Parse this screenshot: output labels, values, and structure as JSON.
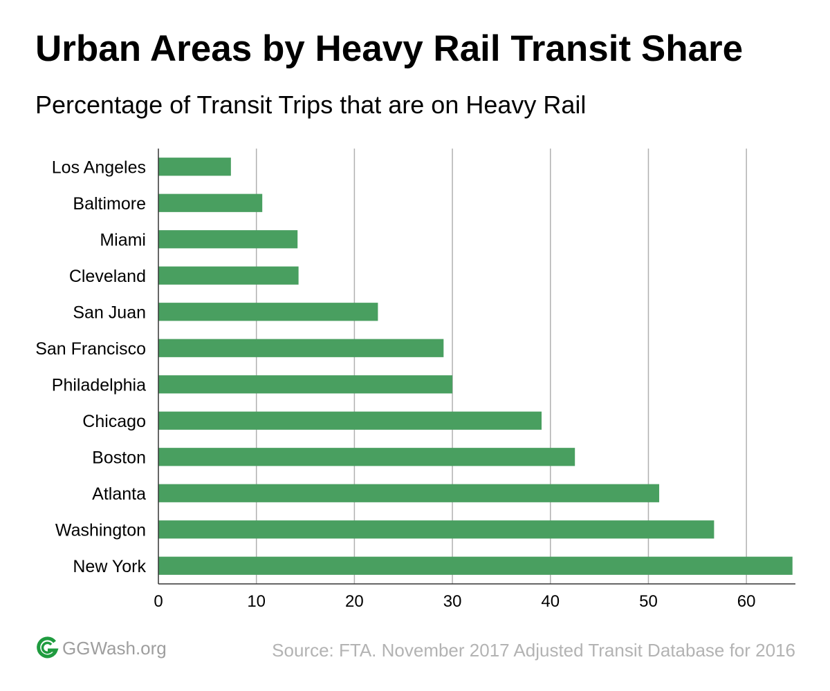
{
  "colors": {
    "bar": "#499f60",
    "grid": "#b0b0b0",
    "axis": "#333333",
    "logo": "#1f9b3f"
  },
  "footer": {
    "brand": "GGWash.org",
    "source": "Source: FTA. November 2017 Adjusted Transit Database for 2016",
    "logo_icon": "ggwash-logo-icon"
  },
  "chart_data": {
    "type": "bar",
    "orientation": "horizontal",
    "title": "Urban Areas by Heavy Rail Transit Share",
    "subtitle": "Percentage of Transit Trips that are on Heavy Rail",
    "categories": [
      "Los Angeles",
      "Baltimore",
      "Miami",
      "Cleveland",
      "San Juan",
      "San Francisco",
      "Philadelphia",
      "Chicago",
      "Boston",
      "Atlanta",
      "Washington",
      "New York"
    ],
    "values": [
      7.4,
      10.6,
      14.2,
      14.3,
      22.4,
      29.1,
      30.0,
      39.1,
      42.5,
      51.1,
      56.7,
      64.7
    ],
    "xlim": [
      0,
      65
    ],
    "xticks": [
      0,
      10,
      20,
      30,
      40,
      50,
      60
    ],
    "grid": true,
    "legend": "none"
  }
}
